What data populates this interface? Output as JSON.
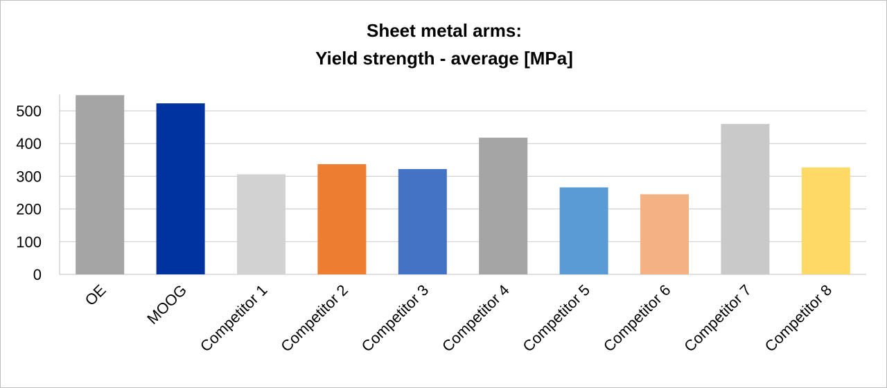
{
  "chart_data": {
    "type": "bar",
    "title": "Sheet metal arms:",
    "subtitle": "Yield strength - average [MPa]",
    "categories": [
      "OE",
      "MOOG",
      "Competitor 1",
      "Competitor 2",
      "Competitor 3",
      "Competitor 4",
      "Competitor 5",
      "Competitor 6",
      "Competitor 7",
      "Competitor 8"
    ],
    "values": [
      548,
      523,
      306,
      337,
      322,
      418,
      266,
      245,
      460,
      327
    ],
    "colors": [
      "#a5a5a5",
      "#0033a0",
      "#d3d2d2",
      "#ed7d31",
      "#4472c4",
      "#a5a5a5",
      "#5b9bd5",
      "#f4b183",
      "#c9c9c9",
      "#ffd966"
    ],
    "xlabel": "",
    "ylabel": "",
    "ylim": [
      0,
      550
    ],
    "yticks": [
      0,
      100,
      200,
      300,
      400,
      500
    ],
    "grid": true,
    "legend": "none"
  }
}
